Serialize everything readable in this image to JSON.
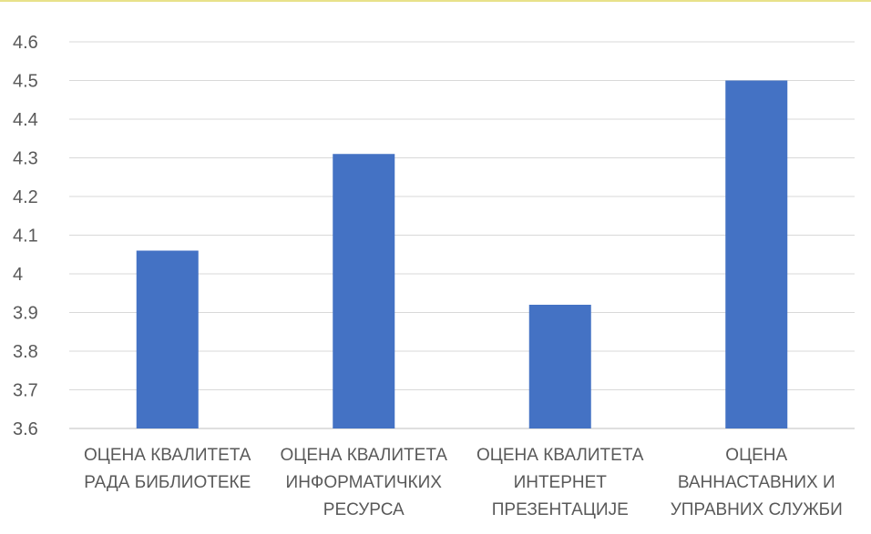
{
  "chart_data": {
    "type": "bar",
    "categories": [
      [
        "ОЦЕНА КВАЛИТЕТА",
        "РАДА БИБЛИОТЕКЕ"
      ],
      [
        "ОЦЕНА КВАЛИТЕТА",
        "ИНФОРМАТИЧКИХ",
        "РЕСУРСА"
      ],
      [
        "ОЦЕНА КВАЛИТЕТА",
        "ИНТЕРНЕТ",
        "ПРЕЗЕНТАЦИЈЕ"
      ],
      [
        "ОЦЕНА",
        "ВАННАСТАВНИХ И",
        "УПРАВНИХ СЛУЖБИ"
      ]
    ],
    "values": [
      4.06,
      4.31,
      3.92,
      4.5
    ],
    "ylim": [
      3.6,
      4.6
    ],
    "yticks": [
      "3.6",
      "3.7",
      "3.8",
      "3.9",
      "4",
      "4.1",
      "4.2",
      "4.3",
      "4.4",
      "4.5",
      "4.6"
    ],
    "title": "",
    "xlabel": "",
    "ylabel": "",
    "grid": true,
    "legend": "none",
    "bar_color": "#4472c4"
  }
}
